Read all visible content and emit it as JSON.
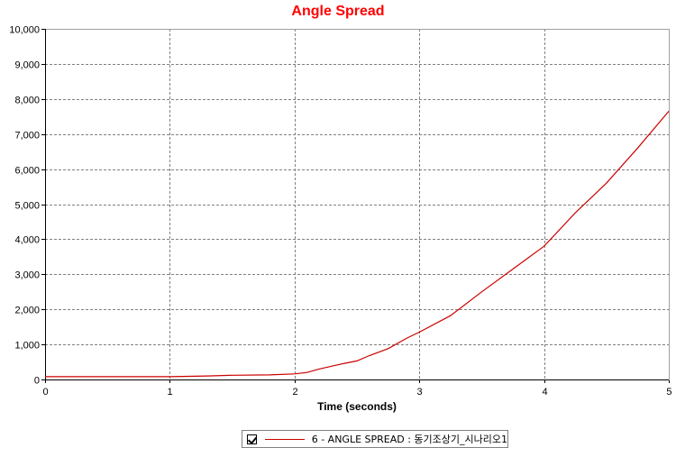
{
  "chart_data": {
    "type": "line",
    "title": "Angle Spread",
    "xlabel": "Time (seconds)",
    "ylabel": "",
    "xlim": [
      0,
      5
    ],
    "ylim": [
      0,
      10000
    ],
    "x_ticks": [
      0,
      1,
      2,
      3,
      4,
      5
    ],
    "y_ticks": [
      0,
      1000,
      2000,
      3000,
      4000,
      5000,
      6000,
      7000,
      8000,
      9000,
      10000
    ],
    "x_tick_labels": [
      "0",
      "1",
      "2",
      "3",
      "4",
      "5"
    ],
    "y_tick_labels": [
      "0",
      "1,000",
      "2,000",
      "3,000",
      "4,000",
      "5,000",
      "6,000",
      "7,000",
      "8,000",
      "9,000",
      "10,000"
    ],
    "grid": true,
    "legend_position": "bottom",
    "series": [
      {
        "name": "6 - ANGLE SPREAD : 동기조상기_시나리오1",
        "color": "#cc0000",
        "x": [
          0,
          0.5,
          1.0,
          1.3,
          1.5,
          1.8,
          2.0,
          2.1,
          2.2,
          2.3,
          2.4,
          2.5,
          2.6,
          2.75,
          2.9,
          3.0,
          3.25,
          3.5,
          3.75,
          4.0,
          4.25,
          4.5,
          4.75,
          5.0
        ],
        "y": [
          80,
          80,
          80,
          100,
          120,
          130,
          160,
          200,
          300,
          380,
          460,
          530,
          680,
          880,
          1180,
          1350,
          1820,
          2500,
          3150,
          3800,
          4750,
          5600,
          6600,
          7650
        ]
      }
    ],
    "colors": {
      "title": "#ff0000",
      "grid": "#808080",
      "axis": "#000000"
    }
  }
}
